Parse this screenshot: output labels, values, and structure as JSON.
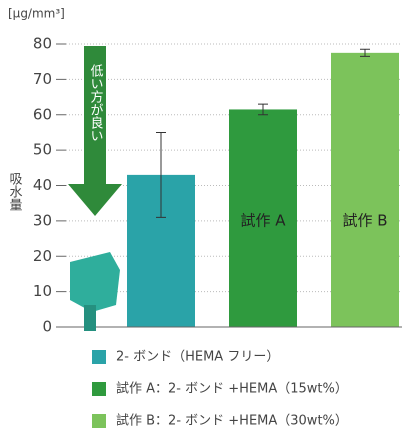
{
  "chart_data": {
    "type": "bar",
    "unit": "[μg/mm³]",
    "ylabel": "吸水量",
    "annotation": "低い方が良い",
    "categories": [
      "2- ボンド（HEMA フリー）",
      "試作 A：2- ボンド +HEMA（15wt%）",
      "試作 B：2- ボンド +HEMA（30wt%）"
    ],
    "bar_labels": [
      null,
      "試作 A",
      "試作 B"
    ],
    "values": [
      43,
      61.5,
      77.5
    ],
    "errors": [
      12,
      1.5,
      1
    ],
    "colors": [
      "#2aa3a8",
      "#2f9a3e",
      "#7cc35b"
    ],
    "ylim": [
      0,
      80
    ],
    "yticks": [
      0,
      10,
      20,
      30,
      40,
      50,
      60,
      70,
      80
    ],
    "grid": true
  }
}
